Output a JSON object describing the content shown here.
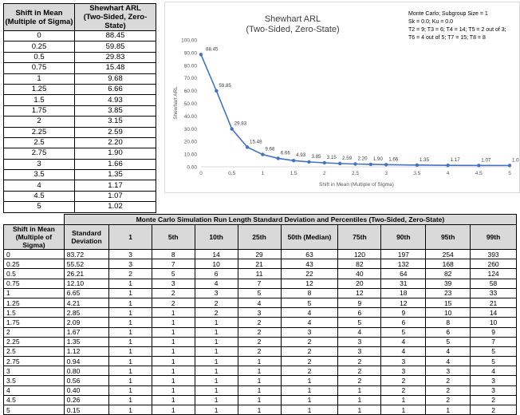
{
  "table1": {
    "headers": [
      "Shift in Mean\n(Multiple of Sigma)",
      "Shewhart ARL\n(Two-Sided, Zero-State)"
    ],
    "rows": [
      [
        "0",
        "88.45"
      ],
      [
        "0.25",
        "59.85"
      ],
      [
        "0.5",
        "29.83"
      ],
      [
        "0.75",
        "15.48"
      ],
      [
        "1",
        "9.68"
      ],
      [
        "1.25",
        "6.66"
      ],
      [
        "1.5",
        "4.93"
      ],
      [
        "1.75",
        "3.85"
      ],
      [
        "2",
        "3.15"
      ],
      [
        "2.25",
        "2.59"
      ],
      [
        "2.5",
        "2.20"
      ],
      [
        "2.75",
        "1.90"
      ],
      [
        "3",
        "1.66"
      ],
      [
        "3.5",
        "1.35"
      ],
      [
        "4",
        "1.17"
      ],
      [
        "4.5",
        "1.07"
      ],
      [
        "5",
        "1.02"
      ]
    ]
  },
  "chart_data": {
    "type": "line",
    "title": "Shewhart ARL",
    "subtitle": "(Two-Sided, Zero-State)",
    "xlabel": "Shift in Mean (Multiple of Sigma)",
    "ylabel": "Shewhart ARL",
    "x": [
      0,
      0.25,
      0.5,
      0.75,
      1,
      1.25,
      1.5,
      1.75,
      2,
      2.25,
      2.5,
      2.75,
      3,
      3.5,
      4,
      4.5,
      5
    ],
    "y": [
      88.45,
      59.85,
      29.83,
      15.48,
      9.68,
      6.66,
      4.93,
      3.85,
      3.15,
      2.59,
      2.2,
      1.9,
      1.66,
      1.35,
      1.17,
      1.07,
      1.02
    ],
    "data_labels": [
      "88.45",
      "59.85",
      "29.83",
      "15.48",
      "9.68",
      "6.66",
      "4.93",
      "3.85",
      "3.15",
      "2.59",
      "2.20",
      "1.90",
      "1.66",
      "1.35",
      "1.17",
      "1.07",
      "1.02"
    ],
    "xlim": [
      0,
      5
    ],
    "ylim": [
      0,
      100
    ],
    "xticks": [
      "0",
      "0.5",
      "1",
      "1.5",
      "2",
      "2.5",
      "3",
      "3.5",
      "4",
      "4.5",
      "5"
    ],
    "yticks": [
      "0.00",
      "10.00",
      "20.00",
      "30.00",
      "40.00",
      "50.00",
      "60.00",
      "70.00",
      "80.00",
      "90.00",
      "100.00"
    ],
    "line_color": "#4472c4",
    "grid": false,
    "annotation": [
      "Monte Carlo; Subgroup Size = 1",
      "Sk = 0.0; Ku = 0.0",
      "T2 = 9; T3 = 6; T4 = 14; T5 = 2 out of 3;",
      "T6 = 4 out of 5; T7 = 15; T8 = 8"
    ]
  },
  "table2": {
    "title": "Monte Carlo Simulation Run Length Standard Deviation and Percentiles (Two-Sided, Zero-State)",
    "headers": [
      "Shift in Mean\n(Multiple of Sigma)",
      "Standard\nDeviation",
      "1",
      "5th",
      "10th",
      "25th",
      "50th (Median)",
      "75th",
      "90th",
      "95th",
      "99th"
    ],
    "rows": [
      [
        "0",
        "83.72",
        "3",
        "8",
        "14",
        "29",
        "63",
        "120",
        "197",
        "254",
        "393"
      ],
      [
        "0.25",
        "55.52",
        "3",
        "7",
        "10",
        "21",
        "43",
        "82",
        "132",
        "168",
        "260"
      ],
      [
        "0.5",
        "26.21",
        "2",
        "5",
        "6",
        "11",
        "22",
        "40",
        "64",
        "82",
        "124"
      ],
      [
        "0.75",
        "12.10",
        "1",
        "3",
        "4",
        "7",
        "12",
        "20",
        "31",
        "39",
        "58"
      ],
      [
        "1",
        "6.65",
        "1",
        "2",
        "3",
        "5",
        "8",
        "12",
        "18",
        "23",
        "33"
      ],
      [
        "1.25",
        "4.21",
        "1",
        "2",
        "2",
        "4",
        "5",
        "9",
        "12",
        "15",
        "21"
      ],
      [
        "1.5",
        "2.85",
        "1",
        "1",
        "2",
        "3",
        "4",
        "6",
        "9",
        "10",
        "14"
      ],
      [
        "1.75",
        "2.09",
        "1",
        "1",
        "1",
        "2",
        "4",
        "5",
        "6",
        "8",
        "10"
      ],
      [
        "2",
        "1.67",
        "1",
        "1",
        "1",
        "2",
        "3",
        "4",
        "5",
        "6",
        "9"
      ],
      [
        "2.25",
        "1.35",
        "1",
        "1",
        "1",
        "2",
        "2",
        "3",
        "4",
        "5",
        "7"
      ],
      [
        "2.5",
        "1.12",
        "1",
        "1",
        "1",
        "2",
        "2",
        "3",
        "4",
        "4",
        "5"
      ],
      [
        "2.75",
        "0.94",
        "1",
        "1",
        "1",
        "1",
        "2",
        "2",
        "3",
        "4",
        "5"
      ],
      [
        "3",
        "0.80",
        "1",
        "1",
        "1",
        "1",
        "2",
        "2",
        "3",
        "3",
        "4"
      ],
      [
        "3.5",
        "0.56",
        "1",
        "1",
        "1",
        "1",
        "1",
        "2",
        "2",
        "2",
        "3"
      ],
      [
        "4",
        "0.40",
        "1",
        "1",
        "1",
        "1",
        "1",
        "1",
        "2",
        "2",
        "3"
      ],
      [
        "4.5",
        "0.26",
        "1",
        "1",
        "1",
        "1",
        "1",
        "1",
        "1",
        "2",
        "2"
      ],
      [
        "5",
        "0.15",
        "1",
        "1",
        "1",
        "1",
        "1",
        "1",
        "1",
        "1",
        "2"
      ]
    ]
  }
}
